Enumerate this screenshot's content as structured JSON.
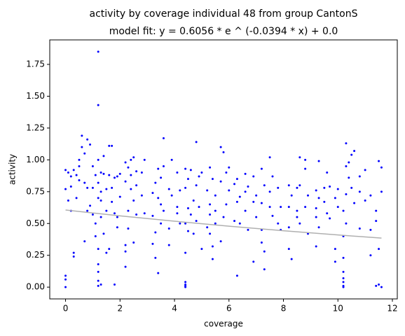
{
  "chart_data": {
    "type": "scatter",
    "title": "activity by coverage individual 48 from group CantonS",
    "subtitle": "model fit: y = 0.6056 * e ^ (-0.0394 * x) + 0.0",
    "x_label": "coverage",
    "y_label": "activity",
    "xlim": [
      -0.58,
      12.18
    ],
    "ylim": [
      -0.0925,
      1.9425
    ],
    "xticks": [
      0,
      2,
      4,
      6,
      8,
      10,
      12
    ],
    "yticks": [
      {
        "value": 0,
        "label": "0.00"
      },
      0.25,
      {
        "value": 0.5,
        "label": "0.50"
      },
      0.75,
      {
        "value": 1,
        "label": "1.00"
      },
      1.25,
      {
        "value": 1.5,
        "label": "1.50"
      },
      1.75
    ],
    "grid": false,
    "series": [
      {
        "type": "scatter",
        "color": "#0000ff",
        "x": [
          0,
          0,
          0,
          0,
          0,
          0.1,
          0.1,
          0.2,
          0.2,
          0.2,
          0.3,
          0.3,
          0.3,
          0.4,
          0.4,
          0.5,
          0.5,
          0.5,
          0.6,
          0.6,
          0.7,
          0.7,
          0.7,
          0.8,
          0.8,
          0.8,
          0.9,
          0.9,
          1.0,
          1.0,
          1.0,
          1.1,
          1.1,
          1.1,
          1.2,
          1.2,
          1.2,
          1.2,
          1.2,
          1.2,
          1.2,
          1.2,
          1.2,
          1.2,
          1.3,
          1.3,
          1.3,
          1.3,
          1.3,
          1.4,
          1.4,
          1.4,
          1.5,
          1.5,
          1.5,
          1.6,
          1.6,
          1.6,
          1.7,
          1.7,
          1.7,
          1.8,
          1.8,
          1.8,
          1.9,
          1.9,
          1.9,
          2.0,
          2.0,
          2.2,
          2.2,
          2.2,
          2.2,
          2.2,
          2.3,
          2.3,
          2.3,
          2.4,
          2.4,
          2.4,
          2.5,
          2.5,
          2.5,
          2.6,
          2.6,
          2.6,
          2.8,
          2.8,
          2.9,
          2.9,
          3.2,
          3.2,
          3.2,
          3.3,
          3.3,
          3.3,
          3.4,
          3.4,
          3.4,
          3.5,
          3.5,
          3.5,
          3.6,
          3.6,
          3.6,
          3.8,
          3.8,
          3.8,
          3.9,
          3.9,
          4.1,
          4.1,
          4.1,
          4.2,
          4.2,
          4.4,
          4.4,
          4.4,
          4.4,
          4.4,
          4.4,
          4.4,
          4.4,
          4.5,
          4.5,
          4.5,
          4.6,
          4.6,
          4.7,
          4.7,
          4.8,
          4.8,
          4.8,
          4.9,
          4.9,
          5.0,
          5.0,
          5.2,
          5.2,
          5.3,
          5.3,
          5.3,
          5.3,
          5.4,
          5.4,
          5.4,
          5.5,
          5.5,
          5.5,
          5.7,
          5.7,
          5.7,
          5.8,
          5.8,
          5.9,
          5.9,
          6.0,
          6.0,
          6.2,
          6.2,
          6.3,
          6.3,
          6.3,
          6.4,
          6.4,
          6.6,
          6.6,
          6.6,
          6.7,
          6.7,
          6.9,
          6.9,
          6.9,
          7.0,
          7.0,
          7.2,
          7.2,
          7.2,
          7.2,
          7.3,
          7.3,
          7.3,
          7.5,
          7.5,
          7.5,
          7.6,
          7.6,
          7.8,
          7.8,
          7.9,
          7.9,
          8.2,
          8.2,
          8.2,
          8.2,
          8.3,
          8.3,
          8.5,
          8.5,
          8.5,
          8.6,
          8.6,
          8.6,
          8.8,
          8.8,
          8.8,
          8.9,
          8.9,
          9.2,
          9.2,
          9.2,
          9.2,
          9.3,
          9.3,
          9.3,
          9.5,
          9.5,
          9.6,
          9.6,
          9.7,
          9.7,
          9.9,
          9.9,
          9.9,
          10.0,
          10.0,
          10.2,
          10.2,
          10.2,
          10.2,
          10.2,
          10.2,
          10.2,
          10.2,
          10.3,
          10.3,
          10.3,
          10.3,
          10.4,
          10.4,
          10.5,
          10.5,
          10.6,
          10.6,
          10.8,
          10.8,
          10.8,
          11.0,
          11.0,
          11.2,
          11.2,
          11.2,
          11.4,
          11.4,
          11.4,
          11.5,
          11.5,
          11.5,
          11.6,
          11.6,
          11.6
        ],
        "values": [
          0.92,
          0.77,
          0.09,
          0.06,
          0.0,
          0.9,
          0.68,
          0.87,
          0.79,
          0.6,
          0.92,
          0.27,
          0.24,
          0.88,
          0.7,
          0.95,
          1.0,
          0.84,
          1.1,
          1.19,
          1.05,
          0.82,
          0.36,
          1.16,
          0.6,
          0.78,
          1.12,
          0.64,
          0.95,
          0.57,
          0.78,
          0.88,
          0.5,
          0.4,
          1.85,
          1.43,
          1.0,
          0.82,
          0.7,
          0.3,
          0.18,
          0.05,
          0.01,
          0.12,
          0.9,
          0.68,
          0.55,
          0.75,
          0.02,
          1.03,
          0.89,
          0.42,
          0.6,
          0.27,
          0.77,
          1.11,
          0.88,
          0.3,
          1.11,
          0.78,
          0.67,
          0.86,
          0.58,
          0.02,
          0.87,
          0.55,
          0.47,
          0.89,
          0.71,
          0.98,
          0.83,
          0.33,
          0.28,
          0.16,
          0.94,
          0.6,
          0.46,
          1.0,
          0.88,
          0.77,
          1.02,
          0.68,
          0.35,
          0.91,
          0.57,
          0.8,
          0.9,
          0.72,
          1.0,
          0.58,
          0.74,
          0.56,
          0.34,
          0.82,
          0.43,
          0.23,
          0.93,
          0.11,
          0.7,
          0.86,
          0.65,
          0.5,
          1.17,
          0.95,
          0.6,
          0.77,
          0.46,
          0.33,
          1.0,
          0.72,
          0.9,
          0.63,
          0.58,
          0.76,
          0.5,
          0.93,
          0.78,
          0.5,
          0.27,
          0.04,
          0.01,
          0.0,
          0.02,
          0.85,
          0.62,
          0.44,
          0.92,
          0.57,
          0.68,
          0.42,
          1.14,
          0.8,
          0.52,
          0.87,
          0.63,
          0.9,
          0.3,
          0.76,
          0.47,
          0.94,
          0.65,
          0.57,
          0.42,
          0.85,
          0.32,
          0.22,
          0.72,
          0.6,
          0.5,
          1.1,
          0.83,
          0.36,
          1.06,
          0.55,
          0.9,
          0.65,
          0.94,
          0.76,
          0.81,
          0.52,
          0.85,
          0.67,
          0.09,
          0.71,
          0.5,
          0.89,
          0.75,
          0.6,
          0.79,
          0.45,
          0.87,
          0.67,
          0.2,
          0.72,
          0.55,
          0.93,
          0.66,
          0.45,
          0.35,
          0.8,
          0.28,
          0.14,
          1.02,
          0.75,
          0.63,
          0.87,
          0.56,
          0.78,
          0.5,
          0.63,
          0.45,
          0.8,
          0.63,
          0.47,
          0.3,
          0.72,
          0.22,
          0.78,
          0.6,
          0.55,
          1.02,
          0.8,
          0.5,
          1.0,
          0.93,
          0.63,
          0.72,
          0.42,
          0.76,
          0.62,
          0.55,
          0.32,
          0.99,
          0.7,
          0.47,
          0.78,
          0.67,
          0.9,
          0.58,
          0.79,
          0.54,
          0.7,
          0.3,
          0.2,
          0.77,
          0.63,
          0.6,
          0.4,
          0.23,
          0.12,
          0.04,
          0.01,
          0.0,
          0.07,
          1.13,
          0.95,
          0.73,
          0.5,
          0.98,
          0.86,
          1.04,
          0.78,
          1.07,
          0.66,
          0.87,
          0.75,
          0.46,
          0.92,
          0.68,
          0.72,
          0.45,
          0.25,
          0.6,
          0.52,
          0.01,
          0.99,
          0.3,
          0.02,
          0.94,
          0.75,
          0.0
        ]
      },
      {
        "type": "line",
        "color": "#b0b0b0",
        "x": [
          0,
          2,
          4,
          6,
          8,
          10,
          11.6
        ],
        "values": [
          0.606,
          0.56,
          0.518,
          0.479,
          0.443,
          0.41,
          0.385
        ]
      }
    ]
  }
}
